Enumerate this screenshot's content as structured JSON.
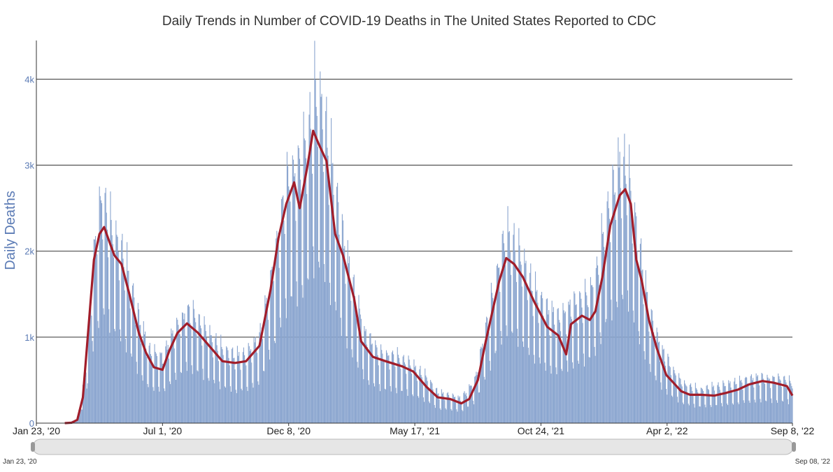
{
  "chart_data": {
    "type": "bar",
    "title": "Daily Trends in Number of COVID-19 Deaths in The United States Reported to CDC",
    "ylabel": "Daily Deaths",
    "xlabel": "",
    "ylim": [
      0,
      4450
    ],
    "yticks": [
      {
        "value": 0,
        "label": "0"
      },
      {
        "value": 1000,
        "label": "1k"
      },
      {
        "value": 2000,
        "label": "2k"
      },
      {
        "value": 3000,
        "label": "3k"
      },
      {
        "value": 4000,
        "label": "4k"
      }
    ],
    "x_start": "2020-01-23",
    "x_end": "2022-09-08",
    "xticks": [
      {
        "date": "2020-01-23",
        "label": "Jan 23, '20"
      },
      {
        "date": "2020-07-01",
        "label": "Jul 1, '20"
      },
      {
        "date": "2020-12-08",
        "label": "Dec 8, '20"
      },
      {
        "date": "2021-05-17",
        "label": "May 17, '21"
      },
      {
        "date": "2021-10-24",
        "label": "Oct 24, '21"
      },
      {
        "date": "2022-04-02",
        "label": "Apr 2, '22"
      },
      {
        "date": "2022-09-08",
        "label": "Sep 8, '22"
      }
    ],
    "grid": "horizontal",
    "range_selector": {
      "start_label": "Jan 23, '20",
      "end_label": "Sep 08, '22"
    },
    "colors": {
      "bars": "#8aa5cf",
      "line": "#a11d2a",
      "grid": "#333333",
      "axis_text": "#5b7bb5"
    },
    "series": [
      {
        "type": "bar",
        "note": "daily deaths (anchor points, daily values interpolated with weekly reporting cycle)",
        "points": [
          [
            "2020-03-01",
            0
          ],
          [
            "2020-03-15",
            40
          ],
          [
            "2020-03-25",
            500
          ],
          [
            "2020-04-05",
            1800
          ],
          [
            "2020-04-15",
            2400
          ],
          [
            "2020-05-01",
            2000
          ],
          [
            "2020-05-15",
            1700
          ],
          [
            "2020-06-01",
            1100
          ],
          [
            "2020-06-15",
            750
          ],
          [
            "2020-07-01",
            700
          ],
          [
            "2020-07-15",
            950
          ],
          [
            "2020-08-01",
            1200
          ],
          [
            "2020-08-15",
            1100
          ],
          [
            "2020-09-01",
            900
          ],
          [
            "2020-09-15",
            780
          ],
          [
            "2020-10-01",
            700
          ],
          [
            "2020-10-15",
            720
          ],
          [
            "2020-11-01",
            900
          ],
          [
            "2020-11-15",
            1500
          ],
          [
            "2020-12-01",
            2300
          ],
          [
            "2020-12-10",
            2700
          ],
          [
            "2020-12-20",
            2700
          ],
          [
            "2021-01-01",
            3000
          ],
          [
            "2021-01-10",
            3500
          ],
          [
            "2021-01-20",
            3300
          ],
          [
            "2021-02-01",
            2700
          ],
          [
            "2021-02-15",
            1950
          ],
          [
            "2021-03-01",
            1400
          ],
          [
            "2021-03-15",
            950
          ],
          [
            "2021-04-01",
            750
          ],
          [
            "2021-04-15",
            720
          ],
          [
            "2021-05-01",
            680
          ],
          [
            "2021-05-15",
            600
          ],
          [
            "2021-06-01",
            480
          ],
          [
            "2021-06-15",
            320
          ],
          [
            "2021-07-01",
            290
          ],
          [
            "2021-07-15",
            260
          ],
          [
            "2021-08-01",
            450
          ],
          [
            "2021-08-15",
            1000
          ],
          [
            "2021-09-01",
            1700
          ],
          [
            "2021-09-10",
            2000
          ],
          [
            "2021-09-20",
            1900
          ],
          [
            "2021-10-01",
            1700
          ],
          [
            "2021-10-15",
            1400
          ],
          [
            "2021-11-01",
            1200
          ],
          [
            "2021-11-15",
            1100
          ],
          [
            "2021-12-01",
            1250
          ],
          [
            "2021-12-15",
            1300
          ],
          [
            "2022-01-01",
            1500
          ],
          [
            "2022-01-15",
            2200
          ],
          [
            "2022-02-01",
            2700
          ],
          [
            "2022-02-10",
            2700
          ],
          [
            "2022-02-25",
            1900
          ],
          [
            "2022-03-10",
            1200
          ],
          [
            "2022-03-25",
            800
          ],
          [
            "2022-04-10",
            550
          ],
          [
            "2022-04-25",
            400
          ],
          [
            "2022-05-15",
            350
          ],
          [
            "2022-06-01",
            380
          ],
          [
            "2022-06-15",
            400
          ],
          [
            "2022-07-01",
            430
          ],
          [
            "2022-07-15",
            470
          ],
          [
            "2022-08-01",
            480
          ],
          [
            "2022-08-15",
            470
          ],
          [
            "2022-09-01",
            460
          ],
          [
            "2022-09-08",
            420
          ]
        ]
      },
      {
        "type": "line",
        "note": "7-day average",
        "points": [
          [
            "2020-02-28",
            0
          ],
          [
            "2020-03-08",
            5
          ],
          [
            "2020-03-15",
            40
          ],
          [
            "2020-03-22",
            300
          ],
          [
            "2020-03-29",
            1100
          ],
          [
            "2020-04-05",
            1900
          ],
          [
            "2020-04-12",
            2200
          ],
          [
            "2020-04-18",
            2280
          ],
          [
            "2020-04-25",
            2100
          ],
          [
            "2020-05-01",
            1950
          ],
          [
            "2020-05-10",
            1850
          ],
          [
            "2020-05-20",
            1500
          ],
          [
            "2020-06-01",
            1050
          ],
          [
            "2020-06-10",
            820
          ],
          [
            "2020-06-20",
            650
          ],
          [
            "2020-07-01",
            620
          ],
          [
            "2020-07-10",
            850
          ],
          [
            "2020-07-20",
            1050
          ],
          [
            "2020-08-01",
            1160
          ],
          [
            "2020-08-15",
            1050
          ],
          [
            "2020-09-01",
            870
          ],
          [
            "2020-09-15",
            720
          ],
          [
            "2020-10-01",
            700
          ],
          [
            "2020-10-15",
            720
          ],
          [
            "2020-11-01",
            900
          ],
          [
            "2020-11-15",
            1550
          ],
          [
            "2020-11-25",
            2150
          ],
          [
            "2020-12-05",
            2550
          ],
          [
            "2020-12-15",
            2800
          ],
          [
            "2020-12-22",
            2500
          ],
          [
            "2021-01-01",
            3000
          ],
          [
            "2021-01-08",
            3400
          ],
          [
            "2021-01-15",
            3250
          ],
          [
            "2021-01-25",
            3050
          ],
          [
            "2021-02-05",
            2200
          ],
          [
            "2021-02-15",
            1950
          ],
          [
            "2021-03-01",
            1450
          ],
          [
            "2021-03-10",
            950
          ],
          [
            "2021-03-25",
            770
          ],
          [
            "2021-04-10",
            720
          ],
          [
            "2021-05-01",
            660
          ],
          [
            "2021-05-15",
            600
          ],
          [
            "2021-06-01",
            420
          ],
          [
            "2021-06-15",
            300
          ],
          [
            "2021-07-01",
            280
          ],
          [
            "2021-07-15",
            230
          ],
          [
            "2021-07-25",
            280
          ],
          [
            "2021-08-05",
            500
          ],
          [
            "2021-08-15",
            950
          ],
          [
            "2021-09-01",
            1650
          ],
          [
            "2021-09-10",
            1920
          ],
          [
            "2021-09-20",
            1850
          ],
          [
            "2021-10-01",
            1700
          ],
          [
            "2021-10-15",
            1420
          ],
          [
            "2021-11-01",
            1120
          ],
          [
            "2021-11-15",
            1020
          ],
          [
            "2021-11-25",
            800
          ],
          [
            "2021-12-01",
            1150
          ],
          [
            "2021-12-15",
            1250
          ],
          [
            "2021-12-25",
            1200
          ],
          [
            "2022-01-01",
            1300
          ],
          [
            "2022-01-10",
            1700
          ],
          [
            "2022-01-20",
            2300
          ],
          [
            "2022-02-01",
            2650
          ],
          [
            "2022-02-08",
            2720
          ],
          [
            "2022-02-15",
            2550
          ],
          [
            "2022-02-22",
            1900
          ],
          [
            "2022-03-01",
            1650
          ],
          [
            "2022-03-10",
            1200
          ],
          [
            "2022-03-20",
            870
          ],
          [
            "2022-04-01",
            560
          ],
          [
            "2022-04-10",
            470
          ],
          [
            "2022-04-20",
            370
          ],
          [
            "2022-05-01",
            330
          ],
          [
            "2022-05-15",
            330
          ],
          [
            "2022-06-01",
            320
          ],
          [
            "2022-06-15",
            350
          ],
          [
            "2022-07-01",
            390
          ],
          [
            "2022-07-15",
            450
          ],
          [
            "2022-08-01",
            490
          ],
          [
            "2022-08-15",
            470
          ],
          [
            "2022-09-01",
            430
          ],
          [
            "2022-09-08",
            320
          ]
        ]
      }
    ]
  }
}
